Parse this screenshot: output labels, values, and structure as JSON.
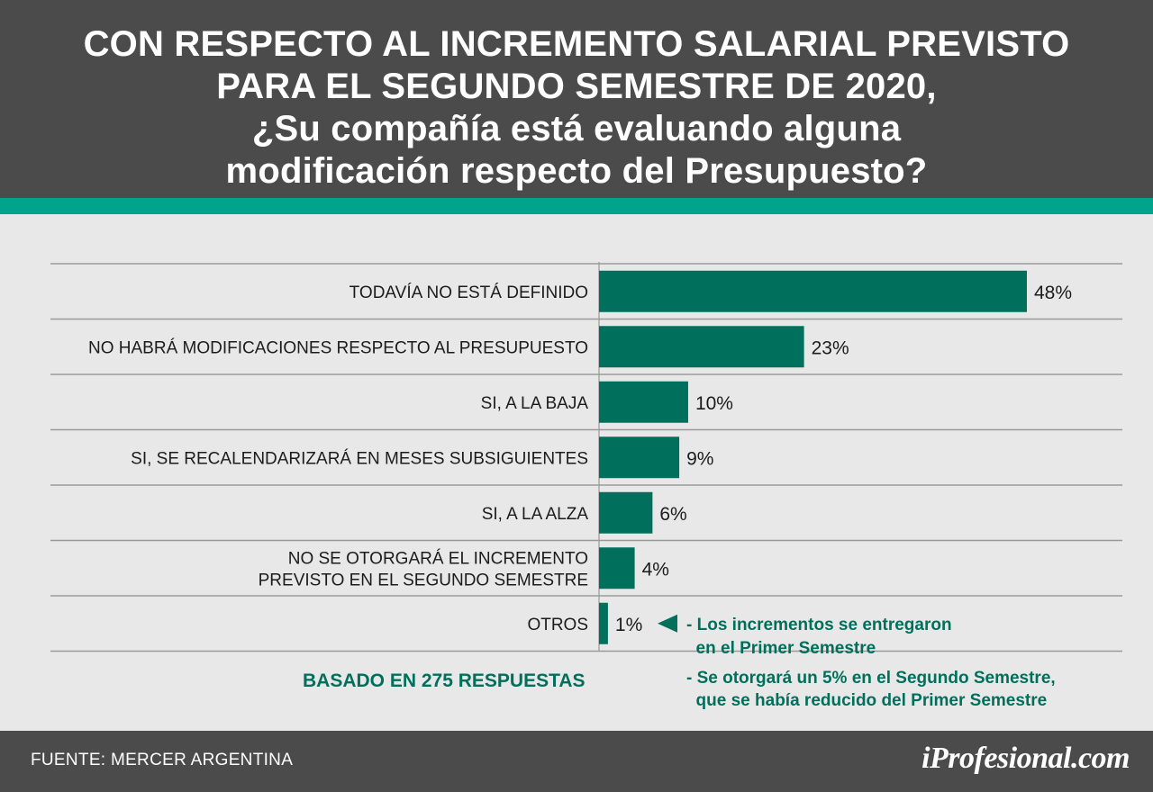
{
  "title_lines": [
    "CON RESPECTO AL INCREMENTO SALARIAL PREVISTO",
    "PARA EL SEGUNDO SEMESTRE DE 2020,",
    "¿Su compañía está evaluando alguna",
    "modificación respecto del Presupuesto?"
  ],
  "colors": {
    "header_bg": "#4b4b4b",
    "accent_band": "#00a48d",
    "bar": "#00705c",
    "note_text": "#00705c",
    "background": "#e8e8e8"
  },
  "chart_data": {
    "type": "bar",
    "orientation": "horizontal",
    "categories": [
      [
        "TODAVÍA NO ESTÁ DEFINIDO"
      ],
      [
        "NO HABRÁ MODIFICACIONES RESPECTO AL PRESUPUESTO"
      ],
      [
        "SI, A LA BAJA"
      ],
      [
        "SI, SE RECALENDARIZARÁ EN MESES SUBSIGUIENTES"
      ],
      [
        "SI, A LA ALZA"
      ],
      [
        "NO SE OTORGARÁ EL INCREMENTO",
        "PREVISTO EN EL SEGUNDO SEMESTRE"
      ],
      [
        "OTROS"
      ]
    ],
    "values": [
      48,
      23,
      10,
      9,
      6,
      4,
      1
    ],
    "data_labels": [
      "48%",
      "23%",
      "10%",
      "9%",
      "6%",
      "4%",
      "1%"
    ],
    "xlim": [
      0,
      48
    ],
    "grid": "horizontal row separators",
    "annotation": {
      "target_category_index": 6,
      "lines": [
        "- Los incrementos se entregaron",
        "  en el Primer Semestre",
        "- Se otorgará un 5% en el Segundo Semestre,",
        "  que se había reducido del Primer Semestre"
      ]
    },
    "note": "BASADO EN 275 RESPUESTAS"
  },
  "footer": {
    "source": "FUENTE: MERCER ARGENTINA",
    "brand": "iProfesional.com"
  }
}
